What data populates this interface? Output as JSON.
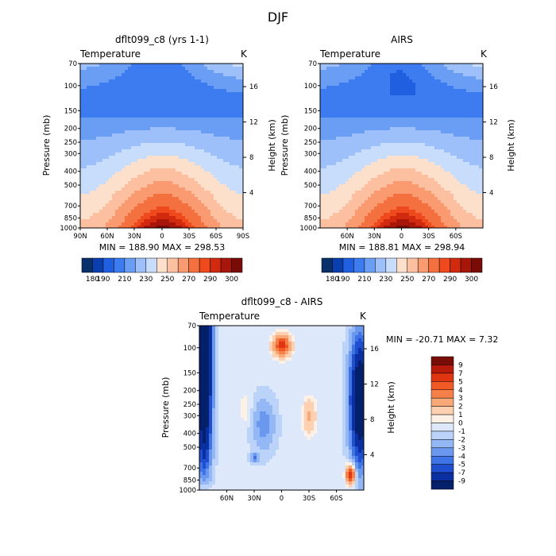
{
  "figure": {
    "title": "DJF"
  },
  "chart_data": [
    {
      "type": "heatmap",
      "title": "dflt099_c8 (yrs 1-1)",
      "subtitle_left": "Temperature",
      "subtitle_right": "K",
      "ylabel": "Pressure (mb)",
      "ylabel_right": "Height (km)",
      "x_ticks": [
        "90N",
        "60N",
        "30N",
        "0",
        "30S",
        "60S",
        "90S"
      ],
      "y_ticks": [
        "70",
        "100",
        "150",
        "200",
        "250",
        "300",
        "400",
        "500",
        "700",
        "850",
        "1000"
      ],
      "height_ticks": [
        "4",
        "8",
        "12",
        "16"
      ],
      "stats": "MIN = 188.90   MAX = 298.53",
      "min": 188.9,
      "max": 298.53,
      "colorbar_labels": [
        "180",
        "190",
        "210",
        "230",
        "250",
        "270",
        "290",
        "300"
      ]
    },
    {
      "type": "heatmap",
      "title": "AIRS",
      "subtitle_left": "Temperature",
      "subtitle_right": "K",
      "ylabel": "Pressure (mb)",
      "ylabel_right": "Height (km)",
      "x_ticks": [
        "60N",
        "30N",
        "0",
        "30S",
        "60S"
      ],
      "y_ticks": [
        "70",
        "100",
        "150",
        "200",
        "250",
        "300",
        "400",
        "500",
        "700",
        "850",
        "1000"
      ],
      "height_ticks": [
        "4",
        "8",
        "12",
        "16"
      ],
      "stats": "MIN = 188.81   MAX = 298.94",
      "min": 188.81,
      "max": 298.94,
      "colorbar_labels": [
        "180",
        "190",
        "210",
        "230",
        "250",
        "270",
        "290",
        "300"
      ]
    },
    {
      "type": "heatmap",
      "title": "dflt099_c8 - AIRS",
      "subtitle_left": "Temperature",
      "subtitle_right": "K",
      "ylabel": "Pressure (mb)",
      "ylabel_right": "Height (km)",
      "x_ticks": [
        "60N",
        "30N",
        "0",
        "30S",
        "60S"
      ],
      "y_ticks": [
        "70",
        "100",
        "150",
        "200",
        "250",
        "300",
        "400",
        "500",
        "700",
        "850",
        "1000"
      ],
      "height_ticks": [
        "4",
        "8",
        "12",
        "16"
      ],
      "stats": "MIN = -20.71   MAX =    7.32",
      "min": -20.71,
      "max": 7.32,
      "colorbar_labels": [
        "9",
        "7",
        "5",
        "4",
        "3",
        "2",
        "1",
        "0",
        "-1",
        "-2",
        "-3",
        "-4",
        "-5",
        "-7",
        "-9"
      ]
    }
  ],
  "colors": {
    "abs_scale": [
      "#08306b",
      "#0a3fb0",
      "#1f5fe0",
      "#3d7bf0",
      "#6a9ef5",
      "#9ec0fa",
      "#c8dcfc",
      "#fde0cc",
      "#fcc0a0",
      "#f99a70",
      "#f5703f",
      "#ef4a1e",
      "#d22a0e",
      "#a8160a",
      "#7a0c08"
    ],
    "diff_scale": [
      "#7a0c08",
      "#b81a0c",
      "#e03510",
      "#f25a25",
      "#f6804a",
      "#f9a878",
      "#fcd0b0",
      "#fdf1e6",
      "#dde9fb",
      "#bcd3f9",
      "#94b7f5",
      "#6a98ef",
      "#3f74e6",
      "#1f4fce",
      "#0a2fa0",
      "#04206b"
    ]
  }
}
